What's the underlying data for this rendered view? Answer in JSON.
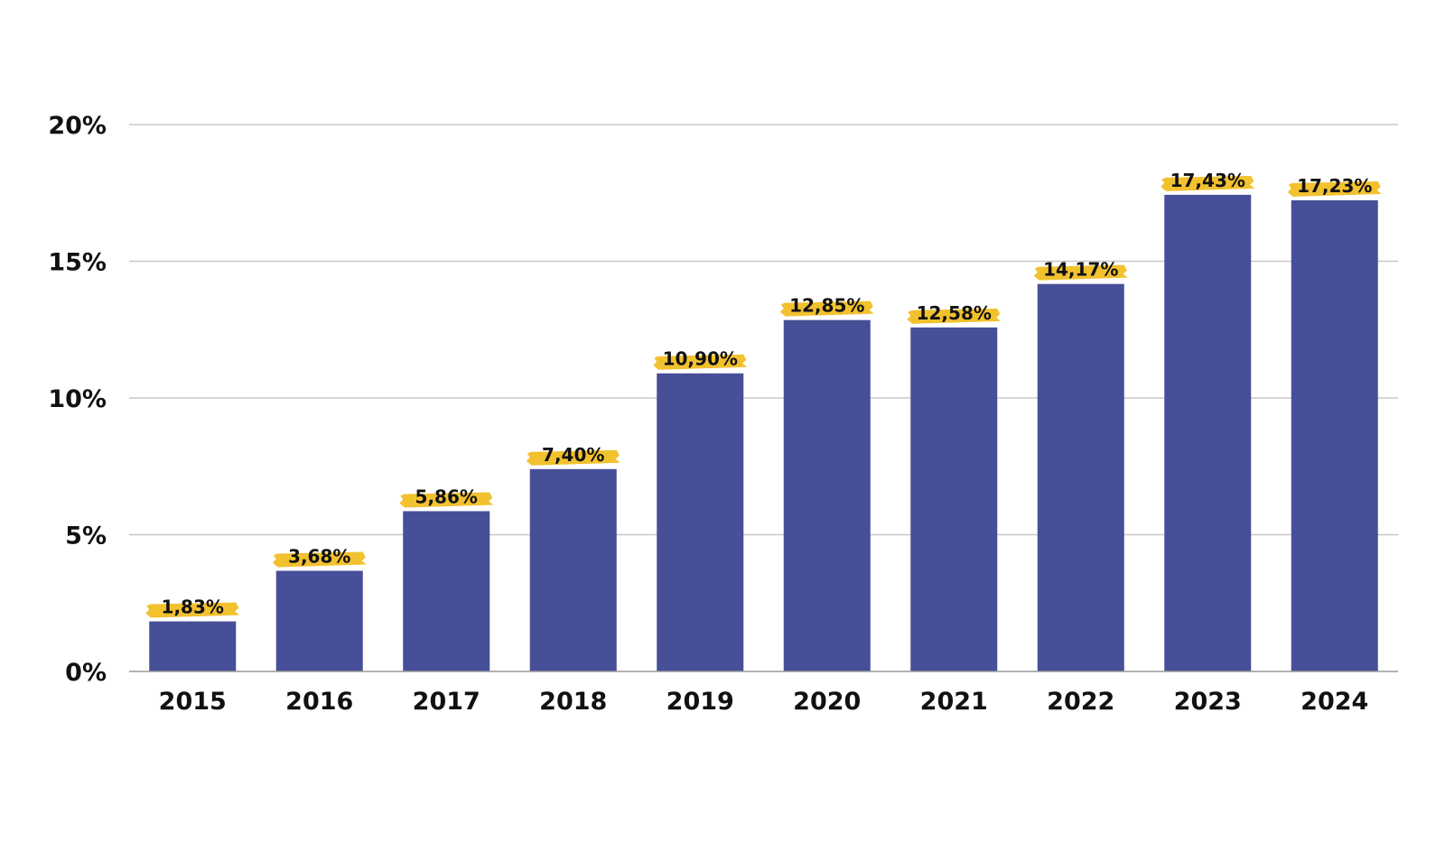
{
  "colors": {
    "bar": "#464f97",
    "highlight": "#f2c12e",
    "grid": "#c8c8c8",
    "text": "#111111"
  },
  "chart_data": {
    "type": "bar",
    "categories": [
      "2015",
      "2016",
      "2017",
      "2018",
      "2019",
      "2020",
      "2021",
      "2022",
      "2023",
      "2024"
    ],
    "values": [
      1.83,
      3.68,
      5.86,
      7.4,
      10.9,
      12.85,
      12.58,
      14.17,
      17.43,
      17.23
    ],
    "data_labels": [
      "1,83%",
      "3,68%",
      "5,86%",
      "7,40%",
      "10,90%",
      "12,85%",
      "12,58%",
      "14,17%",
      "17,43%",
      "17,23%"
    ],
    "ylim": [
      0,
      20
    ],
    "yticks": [
      0,
      5,
      10,
      15,
      20
    ],
    "ytick_labels": [
      "0%",
      "5%",
      "10%",
      "15%",
      "20%"
    ],
    "grid": true,
    "title": "",
    "xlabel": "",
    "ylabel": ""
  }
}
